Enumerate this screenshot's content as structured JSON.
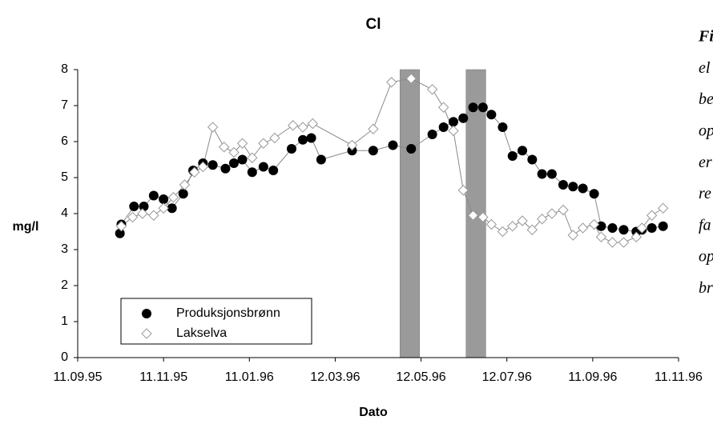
{
  "chart_data": {
    "type": "line",
    "title": "Cl",
    "x_label": "Dato",
    "y_label": "mg/l",
    "xlim": [
      "1995-09-11",
      "1996-11-11"
    ],
    "xticks": [
      {
        "value": "1995-09-11",
        "label": "11.09.95"
      },
      {
        "value": "1995-11-11",
        "label": "11.11.95"
      },
      {
        "value": "1996-01-11",
        "label": "11.01.96"
      },
      {
        "value": "1996-03-12",
        "label": "12.03.96"
      },
      {
        "value": "1996-05-12",
        "label": "12.05.96"
      },
      {
        "value": "1996-07-12",
        "label": "12.07.96"
      },
      {
        "value": "1996-09-11",
        "label": "11.09.96"
      },
      {
        "value": "1996-11-11",
        "label": "11.11.96"
      }
    ],
    "ylim": [
      0,
      8
    ],
    "yticks": [
      0,
      1,
      2,
      3,
      4,
      5,
      6,
      7,
      8
    ],
    "grid": false,
    "legend": "lower-left",
    "shaded_periods": [
      [
        "1996-04-27",
        "1996-05-11"
      ],
      [
        "1996-06-13",
        "1996-06-27"
      ]
    ],
    "series": [
      {
        "name": "Produksjonsbrønn",
        "color": "#000000",
        "marker": "circle",
        "x": [
          "1995-10-11",
          "1995-10-12",
          "1995-10-21",
          "1995-10-28",
          "1995-11-04",
          "1995-11-11",
          "1995-11-17",
          "1995-11-25",
          "1995-12-02",
          "1995-12-09",
          "1995-12-16",
          "1995-12-25",
          "1995-12-31",
          "1996-01-06",
          "1996-01-13",
          "1996-01-21",
          "1996-01-28",
          "1996-02-10",
          "1996-02-18",
          "1996-02-24",
          "1996-03-02",
          "1996-03-24",
          "1996-04-08",
          "1996-04-22",
          "1996-05-05",
          "1996-05-20",
          "1996-05-28",
          "1996-06-04",
          "1996-06-11",
          "1996-06-18",
          "1996-06-25",
          "1996-07-01",
          "1996-07-09",
          "1996-07-16",
          "1996-07-23",
          "1996-07-30",
          "1996-08-06",
          "1996-08-13",
          "1996-08-21",
          "1996-08-28",
          "1996-09-04",
          "1996-09-12",
          "1996-09-17",
          "1996-09-25",
          "1996-10-03",
          "1996-10-12",
          "1996-10-16",
          "1996-10-23",
          "1996-10-31"
        ],
        "values": [
          3.45,
          3.7,
          4.2,
          4.2,
          4.5,
          4.4,
          4.15,
          4.55,
          5.2,
          5.4,
          5.35,
          5.25,
          5.4,
          5.5,
          5.15,
          5.3,
          5.2,
          5.8,
          6.05,
          6.1,
          5.5,
          5.75,
          5.75,
          5.9,
          5.8,
          6.2,
          6.4,
          6.55,
          6.65,
          6.95,
          6.95,
          6.75,
          6.4,
          5.6,
          5.75,
          5.5,
          5.1,
          5.1,
          4.8,
          4.75,
          4.7,
          4.55,
          3.65,
          3.6,
          3.55,
          3.5,
          3.55,
          3.6,
          3.65
        ]
      },
      {
        "name": "Lakselva",
        "color": "#9a9a9a",
        "marker": "diamond",
        "x": [
          "1995-10-12",
          "1995-10-20",
          "1995-10-27",
          "1995-11-04",
          "1995-11-11",
          "1995-11-18",
          "1995-11-26",
          "1995-12-03",
          "1995-12-09",
          "1995-12-16",
          "1995-12-24",
          "1995-12-31",
          "1996-01-06",
          "1996-01-13",
          "1996-01-21",
          "1996-01-29",
          "1996-02-11",
          "1996-02-18",
          "1996-02-25",
          "1996-03-24",
          "1996-04-08",
          "1996-04-21",
          "1996-05-05",
          "1996-05-20",
          "1996-05-28",
          "1996-06-04",
          "1996-06-11",
          "1996-06-18",
          "1996-06-25",
          "1996-07-01",
          "1996-07-09",
          "1996-07-16",
          "1996-07-23",
          "1996-07-30",
          "1996-08-06",
          "1996-08-13",
          "1996-08-21",
          "1996-08-28",
          "1996-09-04",
          "1996-09-12",
          "1996-09-17",
          "1996-09-25",
          "1996-10-03",
          "1996-10-12",
          "1996-10-16",
          "1996-10-23",
          "1996-10-31"
        ],
        "values": [
          3.65,
          3.9,
          4.0,
          3.95,
          4.15,
          4.45,
          4.8,
          5.15,
          5.3,
          6.4,
          5.85,
          5.7,
          5.95,
          5.55,
          5.95,
          6.1,
          6.45,
          6.4,
          6.5,
          5.9,
          6.35,
          7.65,
          7.75,
          7.45,
          6.95,
          6.3,
          4.65,
          3.95,
          3.9,
          3.7,
          3.5,
          3.65,
          3.8,
          3.55,
          3.85,
          4.0,
          4.1,
          3.4,
          3.6,
          3.7,
          3.35,
          3.2,
          3.2,
          3.35,
          3.6,
          3.95,
          4.15
        ]
      }
    ],
    "side_text": [
      "Fi",
      "el",
      "be",
      "op",
      "er",
      "re",
      "fa",
      "op",
      "br"
    ]
  }
}
